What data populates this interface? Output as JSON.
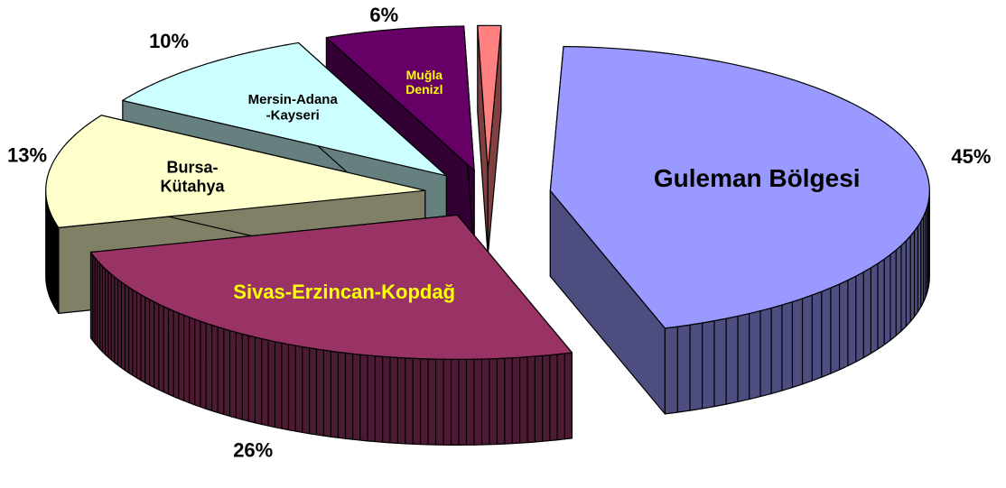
{
  "chart_data": {
    "type": "pie3d",
    "categories": [
      "Guleman Bölgesi",
      "Sivas-Erzincan-Kopdağ",
      "Bursa-\nKütahya",
      "Mersin-Adana\n-Kayseri",
      "Muğla\nDenizl",
      null
    ],
    "values": [
      45,
      26,
      13,
      10,
      6,
      1
    ],
    "value_labels": [
      "45%",
      "26%",
      "13%",
      "10%",
      "6%",
      null
    ],
    "colors": [
      "#9999ff",
      "#993366",
      "#ffffcc",
      "#ccffff",
      "#660066",
      "#ff8080"
    ]
  }
}
